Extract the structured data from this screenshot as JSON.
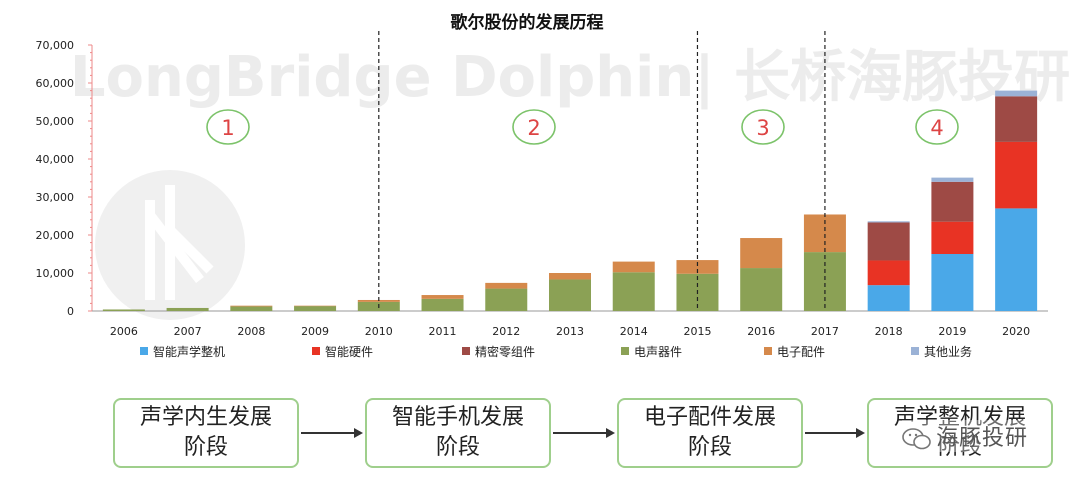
{
  "chart_data": {
    "type": "bar",
    "stacked": true,
    "title": "歌尔股份的发展历程",
    "categories": [
      "2006",
      "2007",
      "2008",
      "2009",
      "2010",
      "2011",
      "2012",
      "2013",
      "2014",
      "2015",
      "2016",
      "2017",
      "2018",
      "2019",
      "2020"
    ],
    "series": [
      {
        "name": "智能声学整机",
        "color": "#4aa8e8",
        "values": [
          0,
          0,
          0,
          0,
          0,
          0,
          0,
          0,
          0,
          0,
          0,
          0,
          6800,
          15000,
          27000
        ]
      },
      {
        "name": "智能硬件",
        "color": "#e83324",
        "values": [
          0,
          0,
          0,
          0,
          0,
          0,
          0,
          0,
          0,
          0,
          0,
          0,
          6500,
          8500,
          17500
        ]
      },
      {
        "name": "精密零组件",
        "color": "#9e4a45",
        "values": [
          0,
          0,
          0,
          0,
          0,
          0,
          0,
          0,
          0,
          0,
          0,
          0,
          10000,
          10500,
          12000
        ]
      },
      {
        "name": "电声器件",
        "color": "#8ba155",
        "values": [
          400,
          800,
          1200,
          1300,
          2400,
          3200,
          5900,
          8300,
          10200,
          9800,
          11300,
          15500,
          0,
          0,
          0
        ]
      },
      {
        "name": "电子配件",
        "color": "#d5894b",
        "values": [
          0,
          0,
          200,
          100,
          500,
          1000,
          1500,
          1700,
          2800,
          3600,
          7900,
          9900,
          0,
          0,
          0
        ]
      },
      {
        "name": "其他业务",
        "color": "#9bb2d6",
        "values": [
          0,
          0,
          0,
          0,
          0,
          0,
          0,
          0,
          0,
          0,
          0,
          0,
          300,
          1100,
          1500
        ]
      }
    ],
    "yticks": [
      "0",
      "10,000",
      "20,000",
      "30,000",
      "40,000",
      "50,000",
      "60,000",
      "70,000"
    ],
    "ylim": [
      0,
      70000
    ],
    "phase_markers": [
      "1",
      "2",
      "3",
      "4"
    ],
    "legend_position": "bottom"
  },
  "watermark": {
    "text": "LongBridge Dolphin| 长桥海豚投研"
  },
  "stages": [
    {
      "line1": "声学内生发展",
      "line2": "阶段"
    },
    {
      "line1": "智能手机发展",
      "line2": "阶段"
    },
    {
      "line1": "电子配件发展",
      "line2": "阶段"
    },
    {
      "line1": "声学整机发展",
      "line2": "阶段"
    }
  ],
  "footer": {
    "wechat_label": "海豚投研"
  }
}
